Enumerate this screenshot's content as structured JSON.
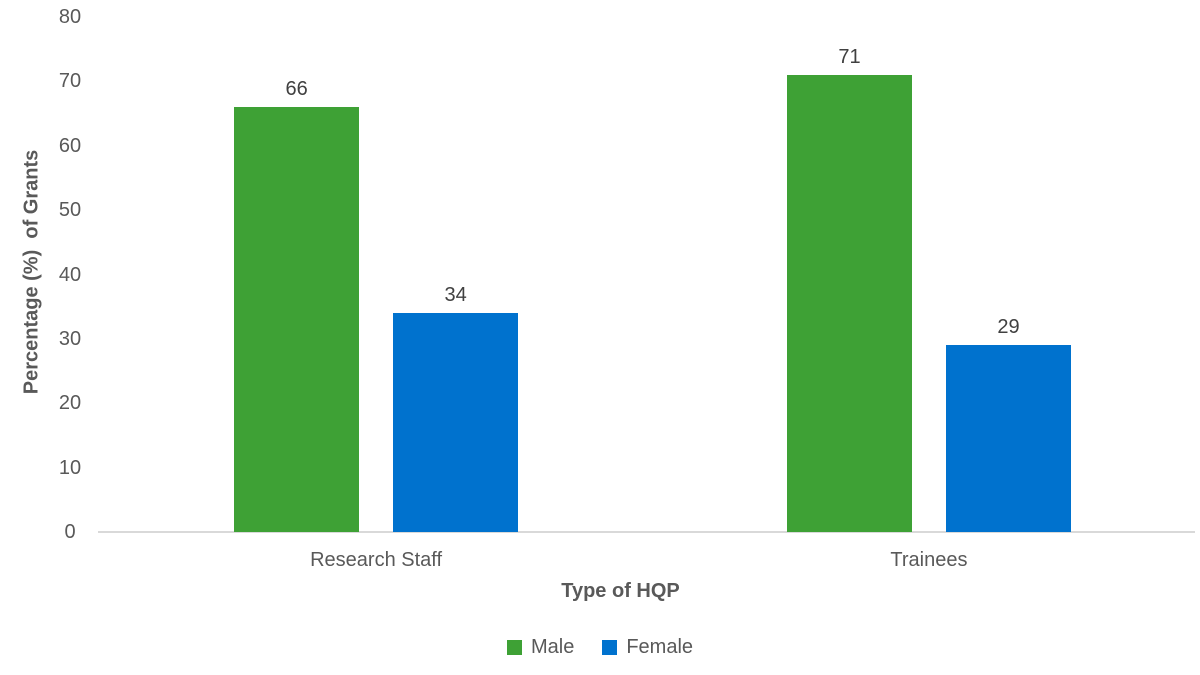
{
  "chart_data": {
    "type": "bar",
    "title": "",
    "categories": [
      "Research Staff",
      "Trainees"
    ],
    "series": [
      {
        "name": "Male",
        "color": "#3ea135",
        "values": [
          66,
          71
        ]
      },
      {
        "name": "Female",
        "color": "#0072ce",
        "values": [
          34,
          29
        ]
      }
    ],
    "value_labels": [
      [
        "66",
        "71"
      ],
      [
        "34",
        "29"
      ]
    ],
    "xlabel": "Type of HQP",
    "ylabel": "Percentage (%)  of Grants",
    "ylim": [
      0,
      80
    ],
    "yticks": [
      0,
      10,
      20,
      30,
      40,
      50,
      60,
      70,
      80
    ],
    "grid": false,
    "legend_position": "bottom",
    "colors": {
      "axis_line": "#d9d9d9",
      "tick_text": "#595959",
      "value_label_text": "#404040",
      "axis_title_text": "#595959"
    }
  }
}
